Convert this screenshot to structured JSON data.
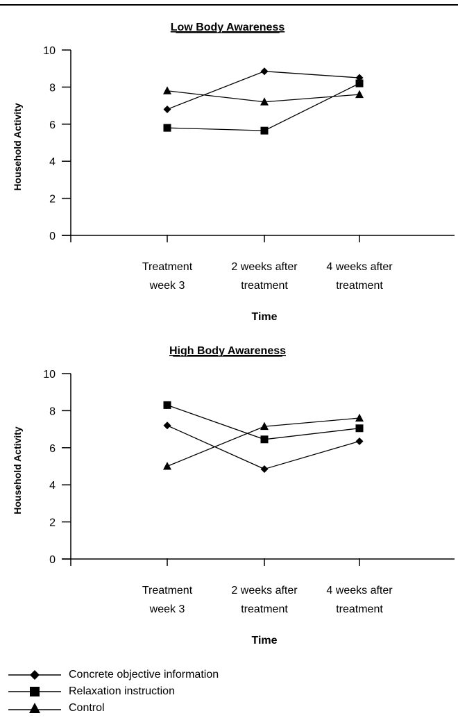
{
  "chart_data": [
    {
      "type": "line",
      "title": "Low Body Awareness",
      "xlabel": "Time",
      "ylabel": "Household Activity",
      "ylim": [
        0,
        10
      ],
      "yticks": [
        0,
        2,
        4,
        6,
        8,
        10
      ],
      "categories": [
        [
          "Treatment",
          "week 3"
        ],
        [
          "2 weeks after",
          "treatment"
        ],
        [
          "4 weeks after",
          "treatment"
        ]
      ],
      "series": [
        {
          "name": "Concrete objective information",
          "marker": "diamond",
          "values": [
            6.8,
            8.85,
            8.5
          ]
        },
        {
          "name": "Relaxation instruction",
          "marker": "square",
          "values": [
            5.8,
            5.65,
            8.2
          ]
        },
        {
          "name": "Control",
          "marker": "triangle",
          "values": [
            7.8,
            7.2,
            7.6
          ]
        }
      ]
    },
    {
      "type": "line",
      "title": "High Body Awareness",
      "xlabel": "Time",
      "ylabel": "Household Activity",
      "ylim": [
        0,
        10
      ],
      "yticks": [
        0,
        2,
        4,
        6,
        8,
        10
      ],
      "categories": [
        [
          "Treatment",
          "week 3"
        ],
        [
          "2 weeks after",
          "treatment"
        ],
        [
          "4 weeks after",
          "treatment"
        ]
      ],
      "series": [
        {
          "name": "Concrete objective information",
          "marker": "diamond",
          "values": [
            7.2,
            4.85,
            6.35
          ]
        },
        {
          "name": "Relaxation instruction",
          "marker": "square",
          "values": [
            8.3,
            6.45,
            7.05
          ]
        },
        {
          "name": "Control",
          "marker": "triangle",
          "values": [
            5.0,
            7.15,
            7.6
          ]
        }
      ]
    }
  ],
  "legend": {
    "items": [
      {
        "label": "Concrete objective information",
        "marker": "diamond"
      },
      {
        "label": "Relaxation instruction",
        "marker": "square"
      },
      {
        "label": "Control",
        "marker": "triangle"
      }
    ]
  }
}
